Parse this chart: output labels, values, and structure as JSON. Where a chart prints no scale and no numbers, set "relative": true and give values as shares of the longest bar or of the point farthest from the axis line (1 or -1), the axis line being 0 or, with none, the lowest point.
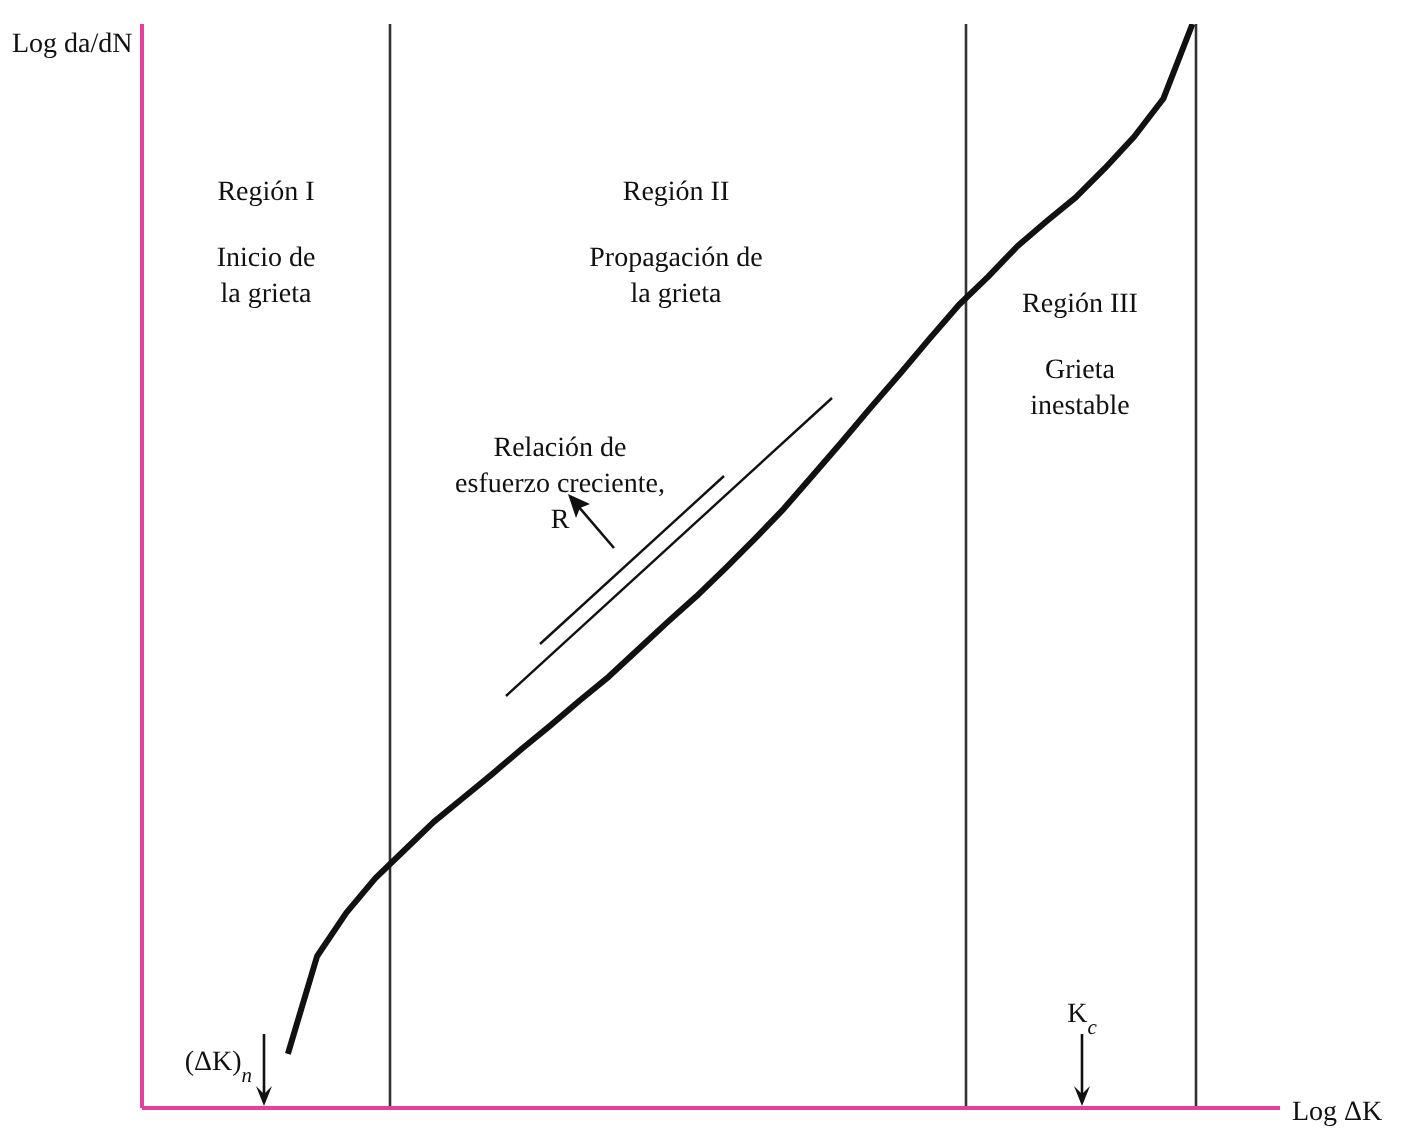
{
  "chart_data": {
    "type": "line",
    "relative": true,
    "xlabel": "Log ΔK",
    "ylabel": "Log da/dN",
    "categories": [
      null,
      null,
      null,
      null,
      null,
      null,
      null,
      null,
      null,
      null,
      null,
      null,
      null,
      null,
      null,
      null,
      null,
      null,
      null,
      null,
      null,
      null,
      null,
      null,
      null,
      null,
      null,
      null,
      null,
      null,
      null,
      null,
      null,
      null,
      null,
      null,
      null,
      null,
      null,
      null
    ],
    "series": [
      {
        "color": "#111111",
        "values": [
          null,
          null,
          null,
          null,
          null,
          0.05,
          0.14,
          0.18,
          0.212,
          0.238,
          0.264,
          0.286,
          0.308,
          0.331,
          0.353,
          0.376,
          0.398,
          0.423,
          0.448,
          0.472,
          0.498,
          0.525,
          0.553,
          0.584,
          0.615,
          0.647,
          0.678,
          0.71,
          0.741,
          0.767,
          0.795,
          0.818,
          0.84,
          0.867,
          0.896,
          0.931,
          1,
          null,
          null,
          null
        ]
      }
    ],
    "annotations": [
      "Región I",
      "Inicio de\nla grieta",
      "Región II",
      "Propagación de\nla grieta",
      "Región III",
      "Grieta\ninestable",
      "Relación de\nesfuerzo creciente,\nR",
      "(ΔK)$_{n}$",
      "K$_{c}$"
    ]
  }
}
